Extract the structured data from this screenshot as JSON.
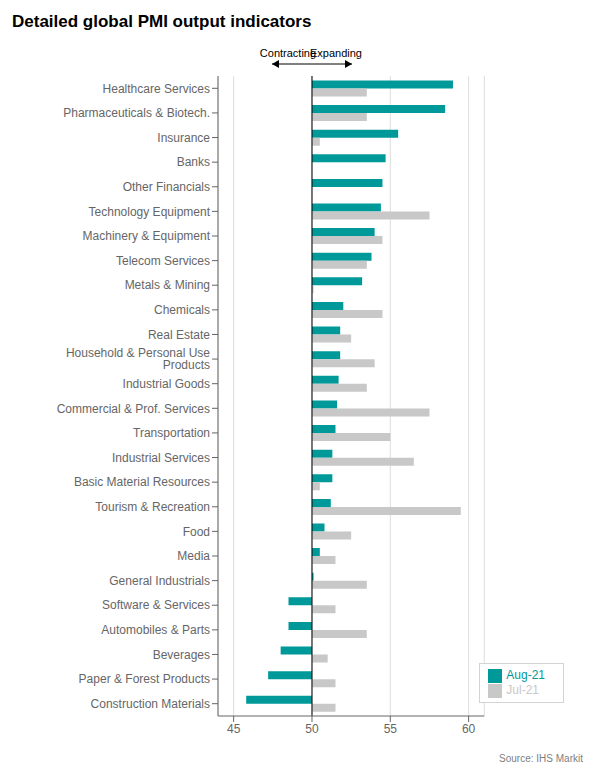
{
  "chart_data": {
    "type": "bar",
    "orientation": "horizontal",
    "title": "Detailed global PMI output indicators",
    "categories": [
      "Healthcare Services",
      "Pharmaceuticals & Biotech.",
      "Insurance",
      "Banks",
      "Other Financials",
      "Technology Equipment",
      "Machinery & Equipment",
      "Telecom Services",
      "Metals & Mining",
      "Chemicals",
      "Real Estate",
      "Household & Personal Use Products",
      "Industrial Goods",
      "Commercial & Prof. Services",
      "Transportation",
      "Industrial Services",
      "Basic Material Resources",
      "Tourism & Recreation",
      "Food",
      "Media",
      "General Industrials",
      "Software & Services",
      "Automobiles & Parts",
      "Beverages",
      "Paper & Forest Products",
      "Construction Materials"
    ],
    "series": [
      {
        "name": "Aug-21",
        "color": "#009999",
        "values": [
          59.0,
          58.5,
          55.5,
          54.7,
          54.5,
          54.4,
          54.0,
          53.8,
          53.2,
          52.0,
          51.8,
          51.8,
          51.7,
          51.6,
          51.5,
          51.3,
          51.3,
          51.2,
          50.8,
          50.5,
          50.1,
          48.5,
          48.5,
          48.0,
          47.2,
          45.8
        ]
      },
      {
        "name": "Jul-21",
        "color": "#c8c8c8",
        "values": [
          53.5,
          53.5,
          50.5,
          50.0,
          50.0,
          57.5,
          54.5,
          53.5,
          50.1,
          54.5,
          52.5,
          54.0,
          53.5,
          57.5,
          55.0,
          56.5,
          50.5,
          59.5,
          52.5,
          51.5,
          53.5,
          51.5,
          53.5,
          51.0,
          51.5,
          51.5
        ]
      }
    ],
    "baseline": 50,
    "xlim": [
      44,
      61
    ],
    "xticks": [
      45,
      50,
      55,
      60
    ],
    "grid": true,
    "legend": "lower right",
    "annotations": [
      "Contracting",
      "Expanding"
    ],
    "source": "Source: IHS Markit"
  }
}
